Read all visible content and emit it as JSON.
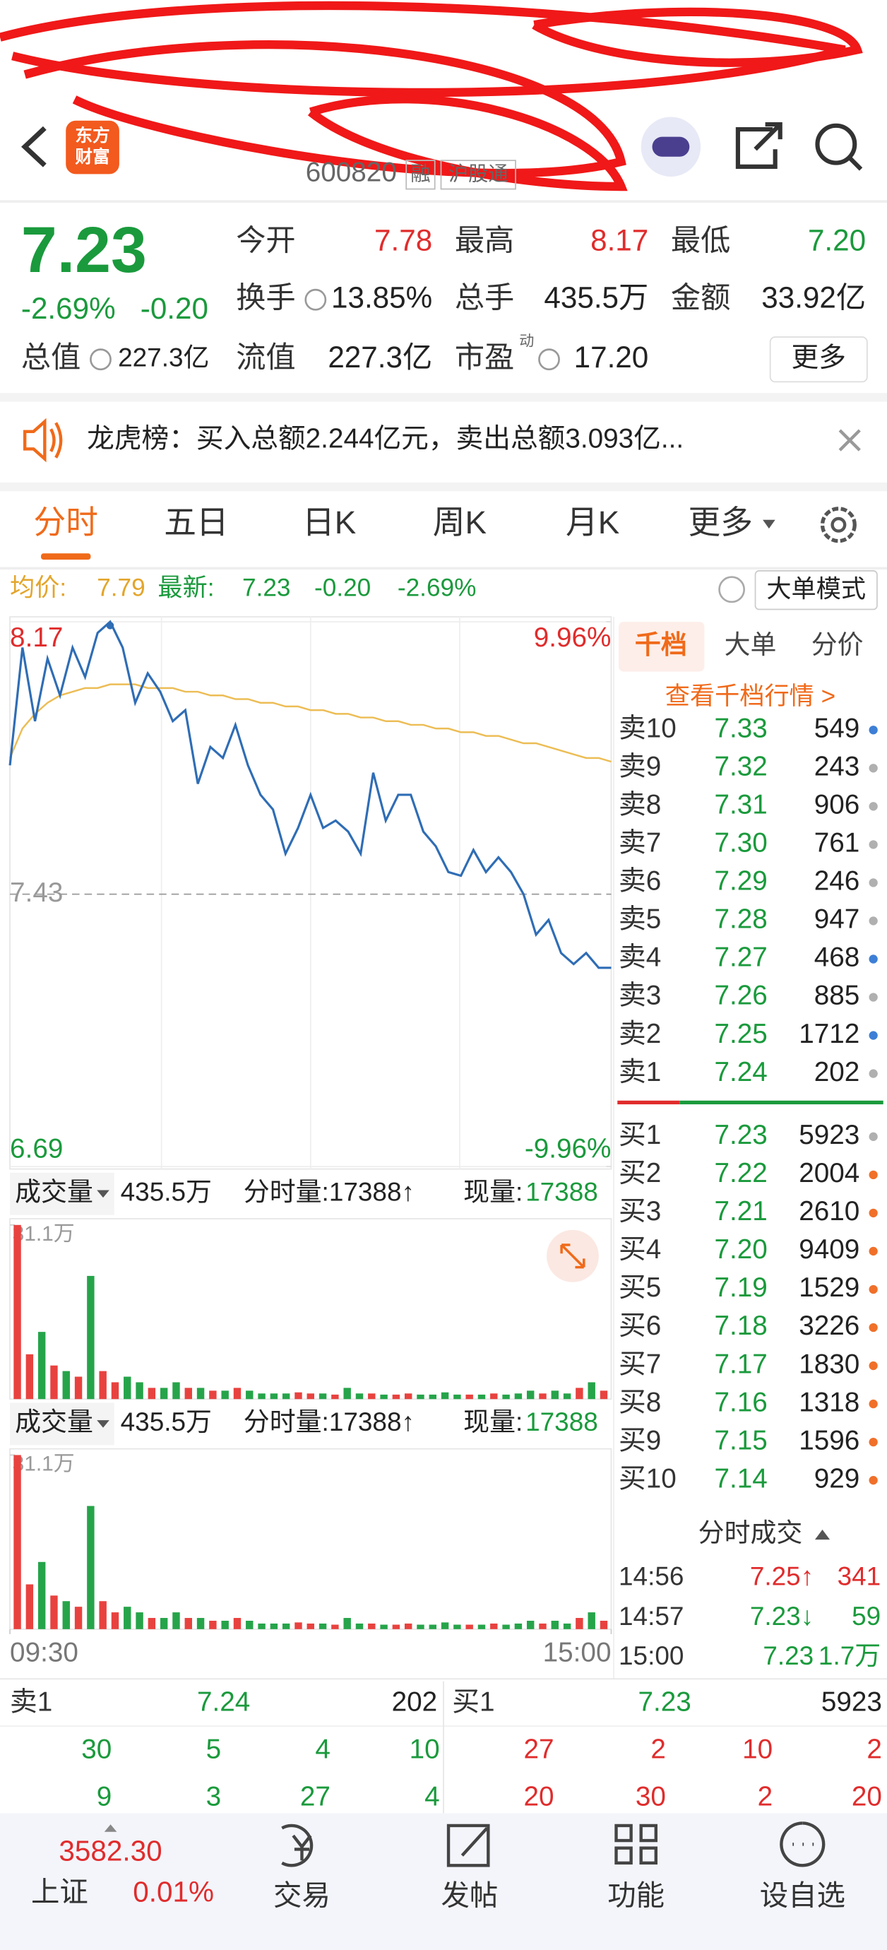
{
  "header": {
    "logo": [
      "东方",
      "财富"
    ],
    "code": "600820",
    "tags": [
      "融",
      "沪股通"
    ]
  },
  "quote": {
    "price": "7.23",
    "change_pct": "-2.69%",
    "change": "-0.20",
    "stats": [
      {
        "label": "今开",
        "value": "7.78"
      },
      {
        "label": "最高",
        "value": "8.17"
      },
      {
        "label": "最低",
        "value": "7.20"
      },
      {
        "label": "换手",
        "value": "13.85%"
      },
      {
        "label": "总手",
        "value": "435.5万"
      },
      {
        "label": "金额",
        "value": "33.92亿"
      },
      {
        "label": "总值",
        "value": "227.3亿"
      },
      {
        "label": "流值",
        "value": "227.3亿"
      },
      {
        "label": "市盈",
        "sup": "动",
        "value": "17.20"
      }
    ],
    "more": "更多"
  },
  "notice": "龙虎榜：买入总额2.244亿元，卖出总额3.093亿...",
  "tabs": [
    "分时",
    "五日",
    "日K",
    "周K",
    "月K",
    "更多"
  ],
  "chart_header": {
    "avg_label": "均价:",
    "avg": "7.79",
    "latest_label": "最新:",
    "latest": "7.23",
    "change": "-0.20",
    "change_pct": "-2.69%",
    "mode": "大单模式"
  },
  "chart_data": [
    {
      "type": "line",
      "x": [
        0,
        5,
        10,
        15,
        20,
        25,
        30,
        35,
        40,
        45,
        50,
        55,
        60,
        65,
        70,
        75,
        80,
        85,
        90,
        95,
        100,
        105,
        110,
        115,
        120,
        125,
        130,
        135,
        140,
        145,
        150,
        155,
        160,
        165,
        170,
        175,
        180,
        185,
        190,
        195,
        200,
        205,
        210,
        215,
        220,
        225,
        230,
        235,
        240
      ],
      "xlim": [
        0,
        240
      ],
      "ylim": [
        6.69,
        8.17
      ],
      "yticks": [
        8.17,
        7.43,
        6.69
      ],
      "y2lim": [
        -9.96,
        9.96
      ],
      "y2ticks": [
        {
          "value": 9.96,
          "label": "9.96%"
        },
        {
          "value": -9.96,
          "label": "-9.96%"
        }
      ],
      "series": [
        {
          "name": "最新",
          "color": "#2f6db5",
          "values": [
            7.78,
            8.1,
            7.9,
            8.07,
            7.97,
            8.1,
            8.02,
            8.14,
            8.17,
            8.1,
            7.95,
            8.03,
            7.98,
            7.9,
            7.93,
            7.73,
            7.83,
            7.8,
            7.89,
            7.78,
            7.7,
            7.66,
            7.54,
            7.61,
            7.7,
            7.61,
            7.63,
            7.6,
            7.54,
            7.76,
            7.63,
            7.7,
            7.7,
            7.6,
            7.56,
            7.49,
            7.48,
            7.55,
            7.49,
            7.53,
            7.49,
            7.43,
            7.32,
            7.36,
            7.27,
            7.24,
            7.27,
            7.23,
            7.23
          ]
        },
        {
          "name": "均价",
          "color": "#ecbd55",
          "values": [
            7.8,
            7.88,
            7.92,
            7.95,
            7.97,
            7.98,
            7.99,
            7.99,
            8.0,
            8.0,
            8.0,
            7.99,
            7.99,
            7.99,
            7.98,
            7.98,
            7.97,
            7.97,
            7.96,
            7.96,
            7.95,
            7.95,
            7.94,
            7.94,
            7.93,
            7.93,
            7.92,
            7.92,
            7.91,
            7.91,
            7.9,
            7.9,
            7.89,
            7.89,
            7.88,
            7.88,
            7.87,
            7.87,
            7.86,
            7.86,
            7.85,
            7.84,
            7.84,
            7.83,
            7.82,
            7.81,
            7.8,
            7.8,
            7.79
          ]
        }
      ],
      "grid": true
    },
    {
      "type": "bar",
      "x": [
        0,
        5,
        10,
        15,
        20,
        25,
        30,
        35,
        40,
        45,
        50,
        55,
        60,
        65,
        70,
        75,
        80,
        85,
        90,
        95,
        100,
        105,
        110,
        115,
        120,
        125,
        130,
        135,
        140,
        145,
        150,
        155,
        160,
        165,
        170,
        175,
        180,
        185,
        190,
        195,
        200,
        205,
        210,
        215,
        220,
        225,
        230,
        235,
        240
      ],
      "xlim": [
        0,
        240
      ],
      "xticks": [
        {
          "value": 0,
          "label": "09:30"
        },
        {
          "value": 240,
          "label": "15:00"
        }
      ],
      "ylim": [
        0,
        31.1
      ],
      "yticks": [
        {
          "value": 31.1,
          "label": "31.1万"
        }
      ],
      "values": [
        31.1,
        8,
        12,
        6,
        5,
        4,
        22,
        5,
        3,
        4,
        3,
        2,
        2,
        3,
        2,
        2,
        1.5,
        1.5,
        2,
        1.5,
        1,
        1,
        1,
        1.2,
        1,
        1,
        0.8,
        2,
        1,
        1,
        0.8,
        0.8,
        1,
        0.8,
        0.8,
        1.2,
        0.8,
        0.8,
        0.8,
        1,
        0.8,
        1,
        1.5,
        1,
        1.5,
        1,
        2,
        3,
        1.5
      ],
      "up_color": "#e8423f",
      "down_color": "#26a44a"
    }
  ],
  "volume_header": {
    "label": "成交量",
    "total": "435.5万",
    "period_label": "分时量:17388↑",
    "current_label": "现量:",
    "current": "17388"
  },
  "order_book": {
    "tabs": [
      "千档",
      "大单",
      "分价"
    ],
    "link": "查看千档行情 >",
    "asks": [
      {
        "label": "卖10",
        "price": "7.33",
        "volume": "549",
        "dot": "#3d7fd6"
      },
      {
        "label": "卖9",
        "price": "7.32",
        "volume": "243",
        "dot": "#b0b0b0"
      },
      {
        "label": "卖8",
        "price": "7.31",
        "volume": "906",
        "dot": "#b0b0b0"
      },
      {
        "label": "卖7",
        "price": "7.30",
        "volume": "761",
        "dot": "#b0b0b0"
      },
      {
        "label": "卖6",
        "price": "7.29",
        "volume": "246",
        "dot": "#b0b0b0"
      },
      {
        "label": "卖5",
        "price": "7.28",
        "volume": "947",
        "dot": "#b0b0b0"
      },
      {
        "label": "卖4",
        "price": "7.27",
        "volume": "468",
        "dot": "#3d7fd6"
      },
      {
        "label": "卖3",
        "price": "7.26",
        "volume": "885",
        "dot": "#b0b0b0"
      },
      {
        "label": "卖2",
        "price": "7.25",
        "volume": "1712",
        "dot": "#3d7fd6"
      },
      {
        "label": "卖1",
        "price": "7.24",
        "volume": "202",
        "dot": "#b0b0b0"
      }
    ],
    "bids": [
      {
        "label": "买1",
        "price": "7.23",
        "volume": "5923",
        "dot": "#b0b0b0"
      },
      {
        "label": "买2",
        "price": "7.22",
        "volume": "2004",
        "dot": "#f0702a"
      },
      {
        "label": "买3",
        "price": "7.21",
        "volume": "2610",
        "dot": "#f0702a"
      },
      {
        "label": "买4",
        "price": "7.20",
        "volume": "9409",
        "dot": "#f0702a"
      },
      {
        "label": "买5",
        "price": "7.19",
        "volume": "1529",
        "dot": "#f0702a"
      },
      {
        "label": "买6",
        "price": "7.18",
        "volume": "3226",
        "dot": "#f0702a"
      },
      {
        "label": "买7",
        "price": "7.17",
        "volume": "1830",
        "dot": "#f0702a"
      },
      {
        "label": "买8",
        "price": "7.16",
        "volume": "1318",
        "dot": "#f0702a"
      },
      {
        "label": "买9",
        "price": "7.15",
        "volume": "1596",
        "dot": "#f0702a"
      },
      {
        "label": "买10",
        "price": "7.14",
        "volume": "929",
        "dot": "#f0702a"
      }
    ]
  },
  "trades": {
    "title": "分时成交",
    "rows": [
      {
        "time": "14:56",
        "price": "7.25↑",
        "volume": "341"
      },
      {
        "time": "14:57",
        "price": "7.23↓",
        "volume": "59"
      },
      {
        "time": "15:00",
        "price": "7.23",
        "volume": "1.7万"
      }
    ]
  },
  "level1": {
    "ask_label": "卖1",
    "ask_price": "7.24",
    "ask_volume": "202",
    "bid_label": "买1",
    "bid_price": "7.23",
    "bid_volume": "5923",
    "ask_queue": [
      [
        "30",
        "5",
        "4",
        "10"
      ],
      [
        "9",
        "3",
        "27",
        "4"
      ]
    ],
    "bid_queue": [
      [
        "27",
        "2",
        "10",
        "2"
      ],
      [
        "20",
        "30",
        "2",
        "20"
      ]
    ]
  },
  "index": {
    "value": "3582.30",
    "name": "上证",
    "change": "0.01%"
  },
  "nav": [
    "交易",
    "发帖",
    "功能",
    "设自选"
  ]
}
